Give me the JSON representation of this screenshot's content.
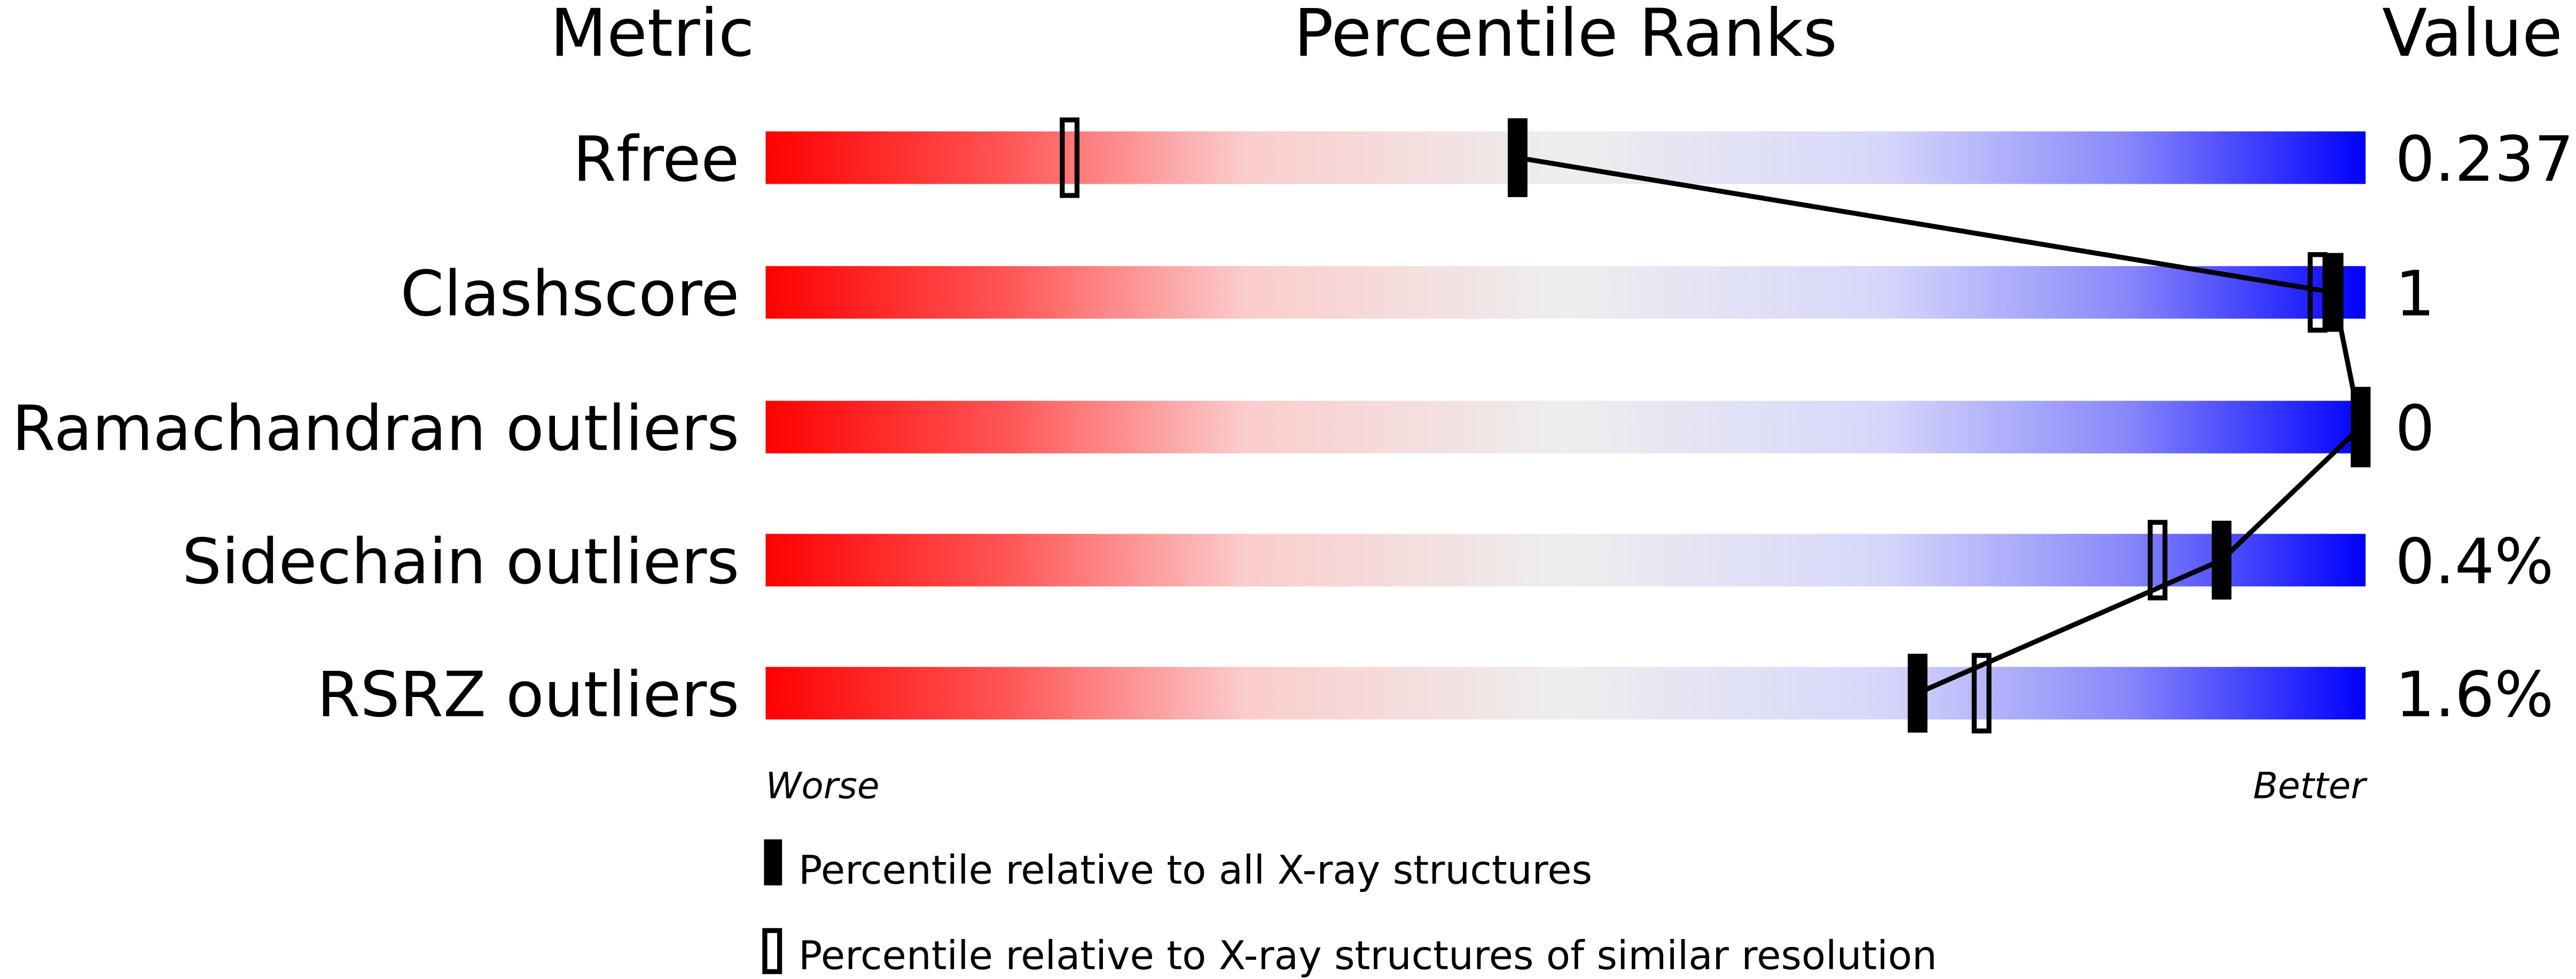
{
  "chart_data": {
    "type": "percentile-slider",
    "headers": {
      "metric": "Metric",
      "ranks": "Percentile Ranks",
      "value": "Value"
    },
    "axis": {
      "min_label": "Worse",
      "max_label": "Better",
      "range": [
        0,
        100
      ]
    },
    "colors": {
      "worse": "#ff0000",
      "middle": "#eeeeee",
      "better": "#0000ff",
      "marker": "#000000"
    },
    "metrics": [
      {
        "name": "Rfree",
        "value": "0.237",
        "percentile_all": 47,
        "percentile_similar": 19
      },
      {
        "name": "Clashscore",
        "value": "1",
        "percentile_all": 98,
        "percentile_similar": 97
      },
      {
        "name": "Ramachandran outliers",
        "value": "0",
        "percentile_all": 100,
        "percentile_similar": 100
      },
      {
        "name": "Sidechain outliers",
        "value": "0.4%",
        "percentile_all": 91,
        "percentile_similar": 87
      },
      {
        "name": "RSRZ outliers",
        "value": "1.6%",
        "percentile_all": 72,
        "percentile_similar": 76
      }
    ],
    "legend": {
      "all": "Percentile relative to all X-ray structures",
      "similar": "Percentile relative to X-ray structures of similar resolution"
    }
  }
}
